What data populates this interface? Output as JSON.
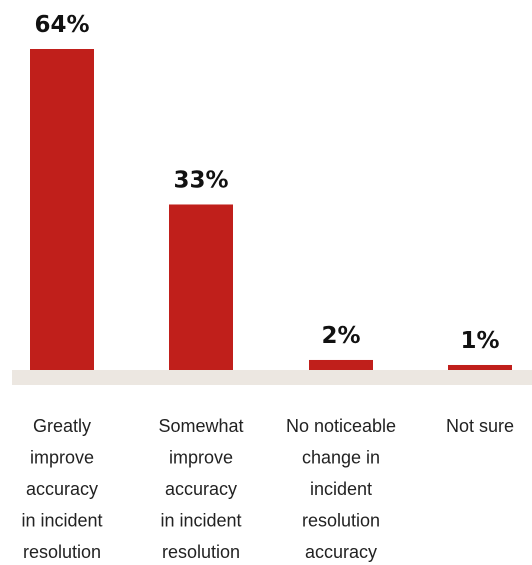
{
  "chart_data": {
    "type": "bar",
    "categories": [
      "Greatly improve accuracy in incident resolution",
      "Somewhat improve accuracy in incident resolution",
      "No noticeable change in incident resolution accuracy",
      "Not sure"
    ],
    "category_lines": [
      [
        "Greatly",
        "improve",
        "accuracy",
        "in incident",
        "resolution"
      ],
      [
        "Somewhat",
        "improve",
        "accuracy",
        "in incident",
        "resolution"
      ],
      [
        "No noticeable",
        "change in",
        "incident",
        "resolution",
        "accuracy"
      ],
      [
        "Not sure"
      ]
    ],
    "values": [
      64,
      33,
      2,
      1
    ],
    "value_labels": [
      "64%",
      "33%",
      "2%",
      "1%"
    ],
    "ylim": [
      0,
      64
    ],
    "grid": false,
    "colors": {
      "bar": "#c01f1b",
      "baseline": "#ece7e1"
    }
  }
}
